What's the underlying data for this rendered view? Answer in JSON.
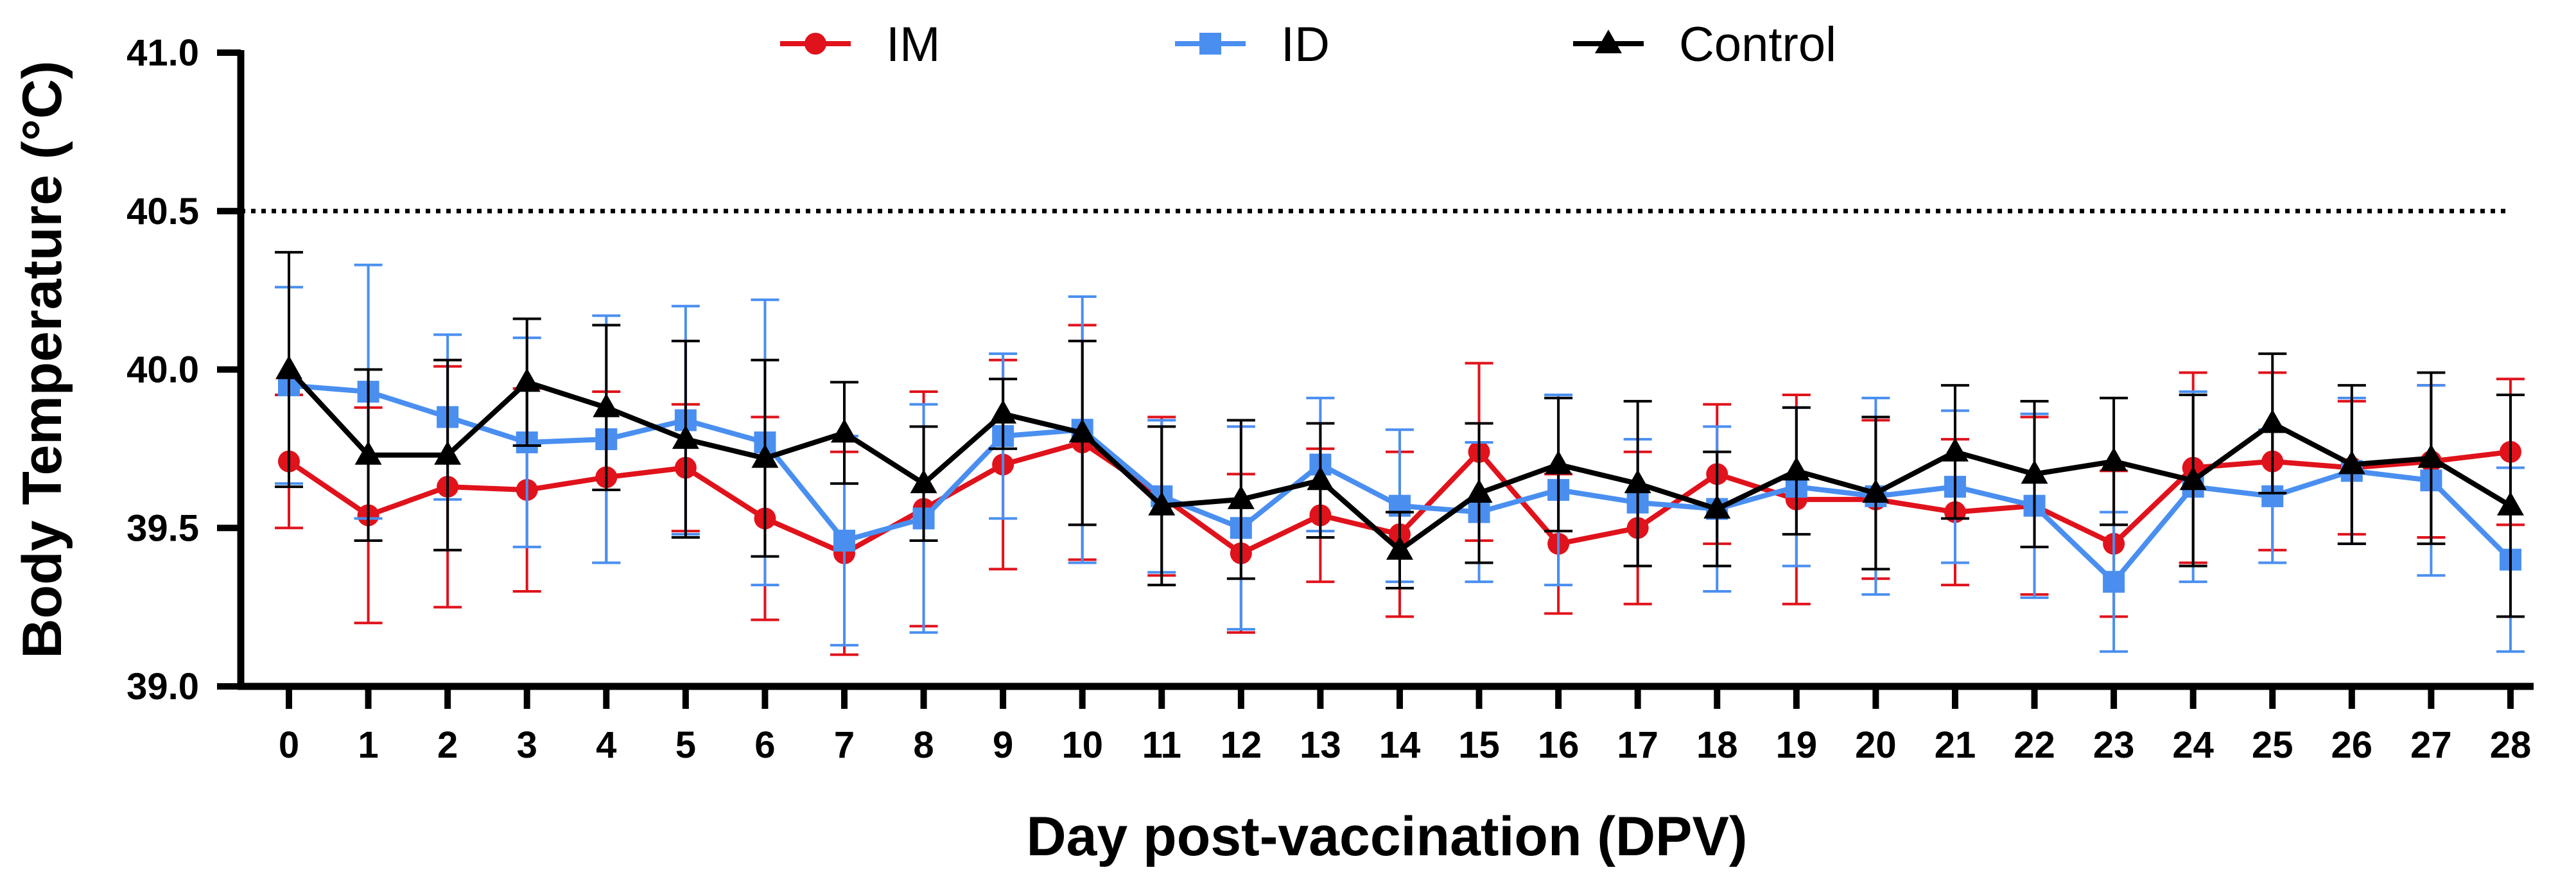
{
  "chart_data": {
    "type": "line",
    "title": "",
    "xlabel": "Day post-vaccination (DPV)",
    "ylabel": "Body Temperature (°C)",
    "ylim": [
      39.0,
      41.0
    ],
    "yticks": [
      "39.0",
      "39.5",
      "40.0",
      "40.5",
      "41.0"
    ],
    "ytick_values": [
      39.0,
      39.5,
      40.0,
      40.5,
      41.0
    ],
    "x": [
      0,
      1,
      2,
      3,
      4,
      5,
      6,
      7,
      8,
      9,
      10,
      11,
      12,
      13,
      14,
      15,
      16,
      17,
      18,
      19,
      20,
      21,
      22,
      23,
      24,
      25,
      26,
      27,
      28
    ],
    "reference_line": {
      "value": 40.5,
      "style": "dotted"
    },
    "legend_position": "top",
    "series": [
      {
        "name": "IM",
        "color": "#e0121b",
        "marker": "circle",
        "values": [
          39.71,
          39.54,
          39.63,
          39.62,
          39.66,
          39.69,
          39.53,
          39.42,
          39.56,
          39.7,
          39.77,
          39.6,
          39.42,
          39.54,
          39.48,
          39.74,
          39.45,
          39.5,
          39.67,
          39.59,
          39.59,
          39.55,
          39.57,
          39.45,
          39.69,
          39.71,
          39.69,
          39.71,
          39.74
        ],
        "errors": [
          0.21,
          0.34,
          0.38,
          0.32,
          0.27,
          0.2,
          0.32,
          0.32,
          0.37,
          0.33,
          0.37,
          0.25,
          0.25,
          0.21,
          0.26,
          0.28,
          0.22,
          0.24,
          0.22,
          0.33,
          0.25,
          0.23,
          0.28,
          0.23,
          0.3,
          0.28,
          0.21,
          0.24,
          0.23
        ]
      },
      {
        "name": "ID",
        "color": "#4a8ff0",
        "marker": "square",
        "values": [
          39.95,
          39.93,
          39.85,
          39.77,
          39.78,
          39.84,
          39.77,
          39.46,
          39.53,
          39.79,
          39.81,
          39.6,
          39.5,
          39.7,
          39.57,
          39.55,
          39.62,
          39.58,
          39.56,
          39.63,
          39.6,
          39.63,
          39.57,
          39.33,
          39.63,
          39.6,
          39.68,
          39.65,
          39.4
        ],
        "errors": [
          0.31,
          0.4,
          0.26,
          0.33,
          0.39,
          0.36,
          0.45,
          0.33,
          0.36,
          0.26,
          0.42,
          0.24,
          0.32,
          0.21,
          0.24,
          0.22,
          0.3,
          0.2,
          0.26,
          0.25,
          0.31,
          0.24,
          0.29,
          0.22,
          0.3,
          0.21,
          0.23,
          0.3,
          0.29
        ]
      },
      {
        "name": "Control",
        "color": "#000000",
        "marker": "triangle",
        "values": [
          40.0,
          39.73,
          39.73,
          39.96,
          39.88,
          39.78,
          39.72,
          39.8,
          39.64,
          39.86,
          39.8,
          39.57,
          39.59,
          39.65,
          39.43,
          39.61,
          39.7,
          39.64,
          39.56,
          39.68,
          39.61,
          39.74,
          39.67,
          39.71,
          39.65,
          39.83,
          39.7,
          39.72,
          39.57
        ],
        "errors": [
          0.37,
          0.27,
          0.3,
          0.2,
          0.26,
          0.31,
          0.31,
          0.16,
          0.18,
          0.11,
          0.29,
          0.25,
          0.25,
          0.18,
          0.12,
          0.22,
          0.21,
          0.26,
          0.18,
          0.2,
          0.24,
          0.21,
          0.23,
          0.2,
          0.27,
          0.22,
          0.25,
          0.27,
          0.35
        ]
      }
    ]
  }
}
